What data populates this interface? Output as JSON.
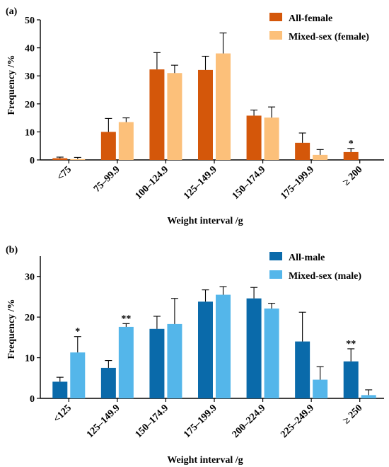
{
  "chart_data": [
    {
      "panel_label": "(a)",
      "type": "bar",
      "xlabel": "Weight interval /g",
      "ylabel": "Frequency /%",
      "ylim": [
        0,
        50
      ],
      "yticks": [
        0,
        10,
        20,
        30,
        40,
        50
      ],
      "categories": [
        "<75",
        "75–99.9",
        "100–124.9",
        "125–149.9",
        "150–174.9",
        "175–199.9",
        "≥ 200"
      ],
      "legend_position": "top-right",
      "series": [
        {
          "name": "All-female",
          "color": "#D4570A",
          "values": [
            0.6,
            10.0,
            32.3,
            32.1,
            15.8,
            6.1,
            2.8
          ],
          "errors": [
            0.4,
            4.8,
            6.0,
            4.9,
            2.0,
            3.5,
            1.3
          ]
        },
        {
          "name": "Mixed-sex (female)",
          "color": "#FCC07A",
          "values": [
            0.3,
            13.5,
            31.0,
            38.0,
            15.1,
            1.8,
            0.0
          ],
          "errors": [
            0.6,
            1.5,
            2.8,
            7.3,
            3.8,
            1.9,
            0.0
          ]
        }
      ],
      "annotations": [
        {
          "category_index": 6,
          "series_index": 0,
          "text": "*"
        }
      ]
    },
    {
      "panel_label": "(b)",
      "type": "bar",
      "xlabel": "Weight interval /g",
      "ylabel": "Frequency /%",
      "ylim": [
        0,
        35
      ],
      "yticks": [
        0,
        10,
        20,
        30
      ],
      "categories": [
        "<125",
        "125–149.9",
        "150–174.9",
        "175–199.9",
        "200–224.9",
        "225–249.9",
        "≥ 250"
      ],
      "legend_position": "top-right",
      "series": [
        {
          "name": "All-male",
          "color": "#0A6AAA",
          "values": [
            4.1,
            7.5,
            17.1,
            23.8,
            24.6,
            14.0,
            9.1
          ],
          "errors": [
            1.1,
            1.8,
            3.1,
            2.9,
            2.7,
            7.2,
            3.1
          ]
        },
        {
          "name": "Mixed-sex (male)",
          "color": "#54B6EA",
          "values": [
            11.3,
            17.6,
            18.3,
            25.5,
            22.1,
            4.6,
            0.8
          ],
          "errors": [
            3.9,
            0.8,
            6.3,
            2.0,
            1.3,
            3.2,
            1.3
          ]
        }
      ],
      "annotations": [
        {
          "category_index": 0,
          "series_index": 1,
          "text": "*"
        },
        {
          "category_index": 1,
          "series_index": 1,
          "text": "**"
        },
        {
          "category_index": 6,
          "series_index": 0,
          "text": "**"
        }
      ]
    }
  ]
}
